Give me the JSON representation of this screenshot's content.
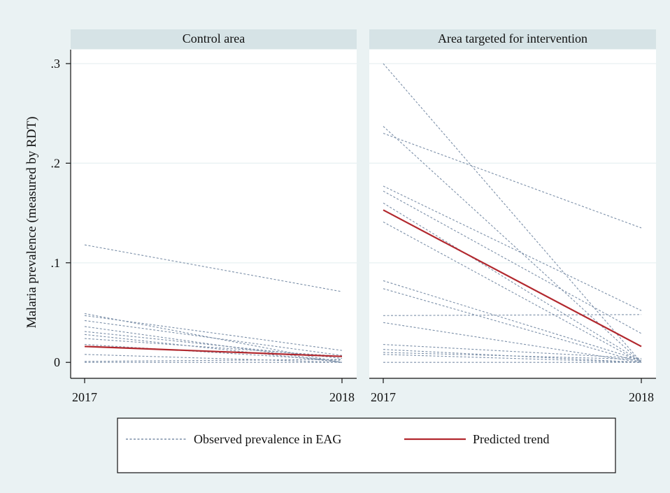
{
  "chart_data": {
    "type": "line",
    "ylabel": "Malaria prevalence (measured by RDT)",
    "x_ticks": [
      "2017",
      "2018"
    ],
    "y_ticks": [
      {
        "value": 0.3,
        "label": ".3"
      },
      {
        "value": 0.2,
        "label": ".2"
      },
      {
        "value": 0.1,
        "label": ".1"
      },
      {
        "value": 0.0,
        "label": "0"
      }
    ],
    "ylim": [
      -0.016,
      0.314
    ],
    "grid": true,
    "legend": {
      "position": "bottom",
      "entries": [
        {
          "label": "Observed prevalence in EAG",
          "style": "dotted",
          "color": "#7b8fa8"
        },
        {
          "label": "Predicted trend",
          "style": "solid",
          "color": "#b2282e"
        }
      ]
    },
    "panels": [
      {
        "title": "Control area",
        "observed": [
          [
            0.118,
            0.071
          ],
          [
            0.049,
            0.0
          ],
          [
            0.047,
            0.012
          ],
          [
            0.042,
            0.007
          ],
          [
            0.036,
            0.0
          ],
          [
            0.031,
            0.004
          ],
          [
            0.028,
            0.0
          ],
          [
            0.024,
            0.006
          ],
          [
            0.018,
            0.002
          ],
          [
            0.008,
            0.0
          ],
          [
            0.001,
            0.003
          ],
          [
            0.0,
            0.0
          ]
        ],
        "predicted": [
          0.016,
          0.006
        ]
      },
      {
        "title": "Area targeted for intervention",
        "observed": [
          [
            0.3,
            0.0
          ],
          [
            0.237,
            0.0
          ],
          [
            0.23,
            0.135
          ],
          [
            0.177,
            0.052
          ],
          [
            0.172,
            0.029
          ],
          [
            0.16,
            0.001
          ],
          [
            0.141,
            0.0
          ],
          [
            0.082,
            0.002
          ],
          [
            0.074,
            0.0
          ],
          [
            0.047,
            0.048
          ],
          [
            0.04,
            0.0
          ],
          [
            0.018,
            0.004
          ],
          [
            0.013,
            0.0
          ],
          [
            0.01,
            0.003
          ],
          [
            0.008,
            0.0
          ],
          [
            0.0,
            0.0
          ]
        ],
        "predicted": [
          0.153,
          0.016
        ]
      }
    ]
  }
}
